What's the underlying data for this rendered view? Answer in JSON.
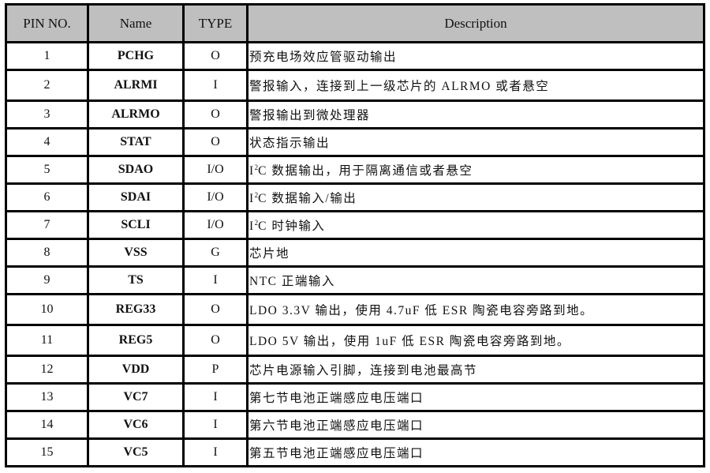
{
  "header_bg": "#bfbfbf",
  "columns": [
    "PIN NO.",
    "Name",
    "TYPE",
    "Description"
  ],
  "rows": [
    {
      "pin": "1",
      "name": "PCHG",
      "type": "O",
      "desc": "预充电场效应管驱动输出"
    },
    {
      "pin": "2",
      "name": "ALRMI",
      "type": "I",
      "desc": "警报输入，连接到上一级芯片的 ALRMO 或者悬空"
    },
    {
      "pin": "3",
      "name": "ALRMO",
      "type": "O",
      "desc": "警报输出到微处理器"
    },
    {
      "pin": "4",
      "name": "STAT",
      "type": "O",
      "desc": "状态指示输出"
    },
    {
      "pin": "5",
      "name": "SDAO",
      "type": "I/O",
      "desc_prefix": "I",
      "desc_sup": "2",
      "desc": "C 数据输出，用于隔离通信或者悬空"
    },
    {
      "pin": "6",
      "name": "SDAI",
      "type": "I/O",
      "desc_prefix": "I",
      "desc_sup": "2",
      "desc": "C 数据输入/输出"
    },
    {
      "pin": "7",
      "name": "SCLI",
      "type": "I/O",
      "desc_prefix": "I",
      "desc_sup": "2",
      "desc": "C 时钟输入"
    },
    {
      "pin": "8",
      "name": "VSS",
      "type": "G",
      "desc": "芯片地"
    },
    {
      "pin": "9",
      "name": "TS",
      "type": "I",
      "desc": "NTC 正端输入"
    },
    {
      "pin": "10",
      "name": "REG33",
      "type": "O",
      "desc": "LDO 3.3V 输出，使用 4.7uF 低 ESR 陶瓷电容旁路到地。"
    },
    {
      "pin": "11",
      "name": "REG5",
      "type": "O",
      "desc": "LDO 5V 输出，使用 1uF 低 ESR 陶瓷电容旁路到地。"
    },
    {
      "pin": "12",
      "name": "VDD",
      "type": "P",
      "desc": "芯片电源输入引脚，连接到电池最高节"
    },
    {
      "pin": "13",
      "name": "VC7",
      "type": "I",
      "desc": "第七节电池正端感应电压端口"
    },
    {
      "pin": "14",
      "name": "VC6",
      "type": "I",
      "desc": "第六节电池正端感应电压端口"
    },
    {
      "pin": "15",
      "name": "VC5",
      "type": "I",
      "desc": "第五节电池正端感应电压端口"
    }
  ]
}
